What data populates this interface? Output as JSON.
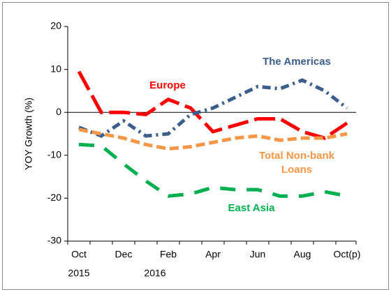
{
  "chart_data": {
    "type": "line",
    "y_label": "YOY Growth (%)",
    "categories": [
      "Oct",
      null,
      "Dec",
      null,
      "Feb",
      null,
      "Apr",
      null,
      "Jun",
      null,
      "Aug",
      null,
      "Oct(p)"
    ],
    "year_labels": [
      "2015",
      null,
      null,
      "2016",
      null,
      null,
      null,
      null,
      null,
      null,
      null,
      null,
      null
    ],
    "series": [
      {
        "name": "Europe",
        "color": "#ff0000",
        "values": [
          9.5,
          0,
          0,
          -0.5,
          3,
          1,
          -4.5,
          -3,
          -1.5,
          -1.5,
          -4.5,
          -6,
          -2.5
        ]
      },
      {
        "name": "The Americas",
        "color": "#3b5e8c",
        "values": [
          -3.5,
          -5.5,
          -2,
          -5.5,
          -5,
          -0.5,
          1,
          3.5,
          6,
          5.5,
          7.5,
          5,
          1
        ]
      },
      {
        "name": "Total Non-bank Loans",
        "color": "#f79646",
        "values": [
          -4,
          -5,
          -6,
          -7.5,
          -8.5,
          -8,
          -7,
          -6,
          -5.5,
          -6.5,
          -6,
          -6,
          -5
        ]
      },
      {
        "name": "East Asia",
        "color": "#00b050",
        "values": [
          -7.5,
          -7.8,
          -12,
          -16,
          -19.5,
          -19,
          -17.5,
          -18,
          -18,
          -19.5,
          -19.5,
          -18.5,
          -19.5
        ]
      }
    ],
    "ylim": [
      -30,
      20
    ],
    "yticks": [
      -30,
      -20,
      -10,
      0,
      10,
      20
    ]
  }
}
